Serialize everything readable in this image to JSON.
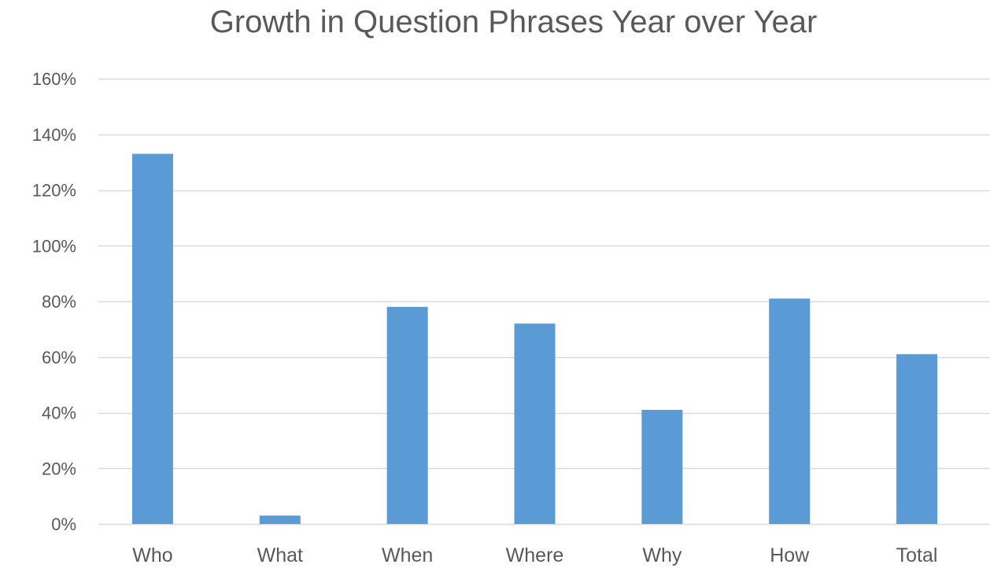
{
  "chart_data": {
    "type": "bar",
    "title": "Growth in Question Phrases Year over Year",
    "xlabel": "",
    "ylabel": "",
    "categories": [
      "Who",
      "What",
      "When",
      "Where",
      "Why",
      "How",
      "Total"
    ],
    "values": [
      1.33,
      0.03,
      0.78,
      0.72,
      0.41,
      0.81,
      0.61
    ],
    "ylim": [
      0,
      1.6
    ],
    "yticks": [
      0,
      0.2,
      0.4,
      0.6,
      0.8,
      1.0,
      1.2,
      1.4,
      1.6
    ],
    "ytick_labels": [
      "0%",
      "20%",
      "40%",
      "60%",
      "80%",
      "100%",
      "120%",
      "140%",
      "160%"
    ],
    "grid": true,
    "legend": "none",
    "colors": {
      "bar": "#5b9bd5",
      "grid": "#d9d9d9",
      "text": "#595959"
    }
  }
}
